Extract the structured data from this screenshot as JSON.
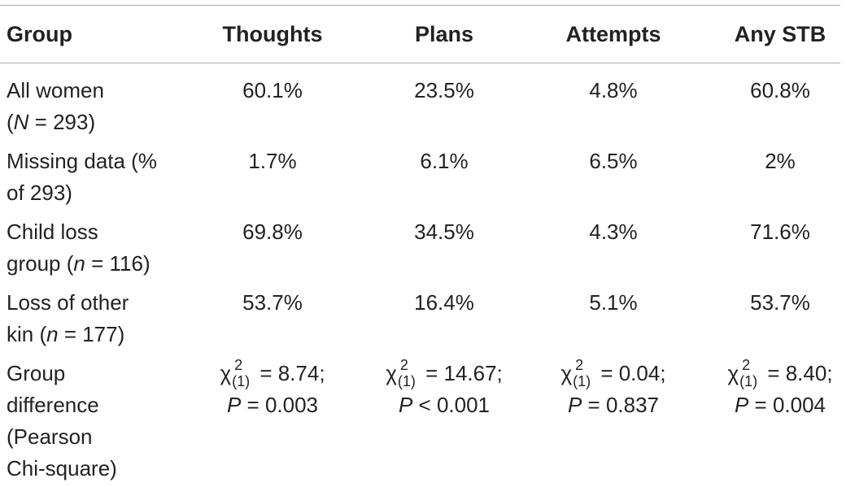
{
  "table": {
    "headers": [
      "Group",
      "Thoughts",
      "Plans",
      "Attempts",
      "Any STB"
    ],
    "rows": [
      {
        "label_line1": "All women",
        "label_line2_pre": "(",
        "label_line2_var": "N",
        "label_line2_post": " = 293)",
        "values": [
          "60.1%",
          "23.5%",
          "4.8%",
          "60.8%"
        ]
      },
      {
        "label_line1": "Missing data (%",
        "label_line2": "of 293)",
        "values": [
          "1.7%",
          "6.1%",
          "6.5%",
          "2%"
        ]
      },
      {
        "label_line1": "Child loss",
        "label_line2_pre": "group (",
        "label_line2_var": "n",
        "label_line2_post": " = 116)",
        "values": [
          "69.8%",
          "34.5%",
          "4.3%",
          "71.6%"
        ]
      },
      {
        "label_line1": "Loss of other",
        "label_line2_pre": "kin (",
        "label_line2_var": "n",
        "label_line2_post": " = 177)",
        "values": [
          "53.7%",
          "16.4%",
          "5.1%",
          "53.7%"
        ]
      }
    ],
    "difference_row": {
      "label_lines": [
        "Group",
        "difference",
        "(Pearson",
        "Chi-square)"
      ],
      "chi_symbol": "χ",
      "superscript": "2",
      "subscript": "(1)",
      "p_var": "P",
      "tests": [
        {
          "chi": " = 8.74;",
          "p": " = 0.003"
        },
        {
          "chi": " = 14.67;",
          "p": " < 0.001"
        },
        {
          "chi": " = 0.04;",
          "p": " = 0.837"
        },
        {
          "chi": " = 8.40;",
          "p": " = 0.004"
        }
      ]
    }
  }
}
